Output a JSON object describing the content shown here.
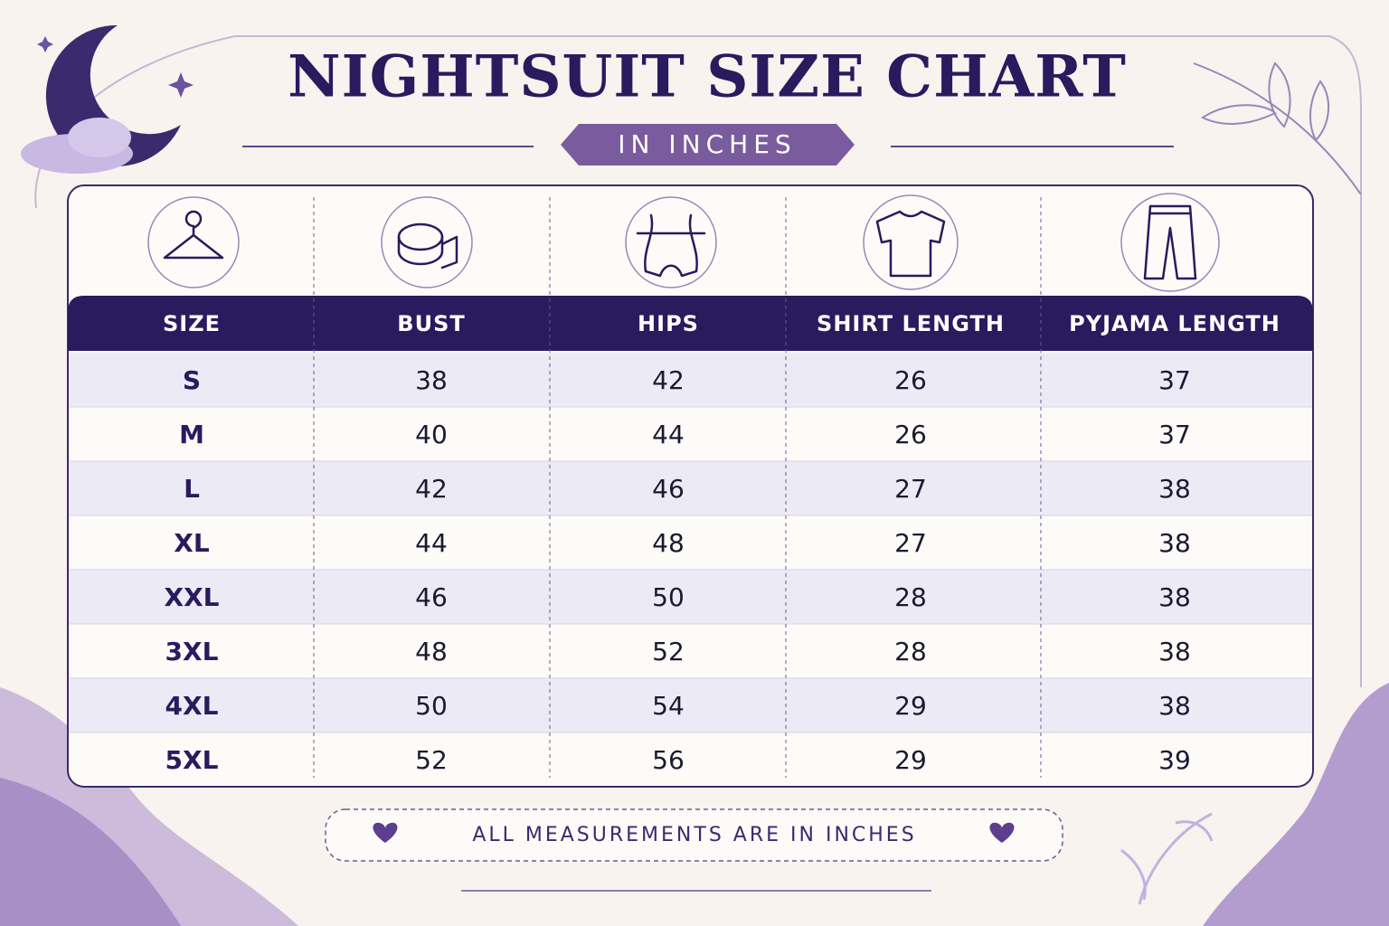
{
  "header": {
    "title": "NIGHTSUIT SIZE CHART",
    "subtitle": "IN INCHES"
  },
  "table": {
    "headers": [
      "SIZE",
      "BUST",
      "HIPS",
      "SHIRT LENGTH",
      "PYJAMA LENGTH"
    ],
    "rows": [
      [
        "S",
        38,
        42,
        26,
        37
      ],
      [
        "M",
        40,
        44,
        26,
        37
      ],
      [
        "L",
        42,
        46,
        27,
        38
      ],
      [
        "XL",
        44,
        48,
        27,
        38
      ],
      [
        "XXL",
        46,
        50,
        28,
        38
      ],
      [
        "3XL",
        48,
        52,
        28,
        38
      ],
      [
        "4XL",
        50,
        54,
        29,
        38
      ],
      [
        "5XL",
        52,
        56,
        29,
        39
      ]
    ]
  },
  "footer": {
    "note": "ALL MEASUREMENTS ARE IN INCHES"
  }
}
